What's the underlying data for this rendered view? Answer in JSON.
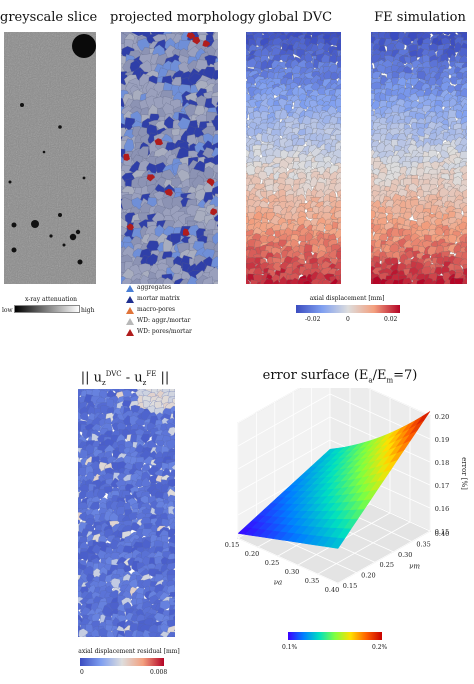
{
  "titles": {
    "greyscale": "greyscale slice",
    "morphology": "projected morphology",
    "dvc": "global DVC",
    "fe": "FE simulation",
    "residual_main": "|| u",
    "residual_sup1": "DVC",
    "residual_mid": " - u",
    "residual_sup2": "FE",
    "residual_end": " ||",
    "error_main": "error surface (E",
    "error_sub1": "a",
    "error_slash": "/E",
    "error_sub2": "m",
    "error_end": "=7)"
  },
  "greyscale_bar": {
    "label": "x-ray attenuation",
    "low": "low",
    "high": "high"
  },
  "legend": {
    "items": [
      {
        "label": "aggregates",
        "color": "#4a7fd6"
      },
      {
        "label": "mortar matrix",
        "color": "#1f2f8f"
      },
      {
        "label": "macro-pores",
        "color": "#e0743a"
      },
      {
        "label": "WD: aggr./mortar",
        "color": "#b8b8b8"
      },
      {
        "label": "WD: pores/mortar",
        "color": "#b01c1c"
      }
    ]
  },
  "displacement_bar": {
    "label": "axial displacement [mm]",
    "ticks": [
      "-0.02",
      "0",
      "0.02"
    ]
  },
  "residual_bar": {
    "label": "axial displacement residual [mm]",
    "ticks": [
      "0",
      "0.008"
    ]
  },
  "error_bar": {
    "ticks": [
      "0.1%",
      "0.2%"
    ]
  },
  "chart_data": {
    "type": "surface",
    "title": "error surface (Ea/Em=7)",
    "xlabel": "νa",
    "ylabel": "νm",
    "zlabel": "error [%]",
    "x_ticks": [
      "0.15",
      "0.20",
      "0.25",
      "0.30",
      "0.35",
      "0.40"
    ],
    "y_ticks": [
      "0.15",
      "0.20",
      "0.25",
      "0.30",
      "0.35",
      "0.40"
    ],
    "z_ticks": [
      "0.15",
      "0.16",
      "0.17",
      "0.18",
      "0.19",
      "0.20"
    ],
    "corners": {
      "low_low": 0.152,
      "high_low": 0.165,
      "low_high": 0.166,
      "high_high": 0.19
    }
  }
}
